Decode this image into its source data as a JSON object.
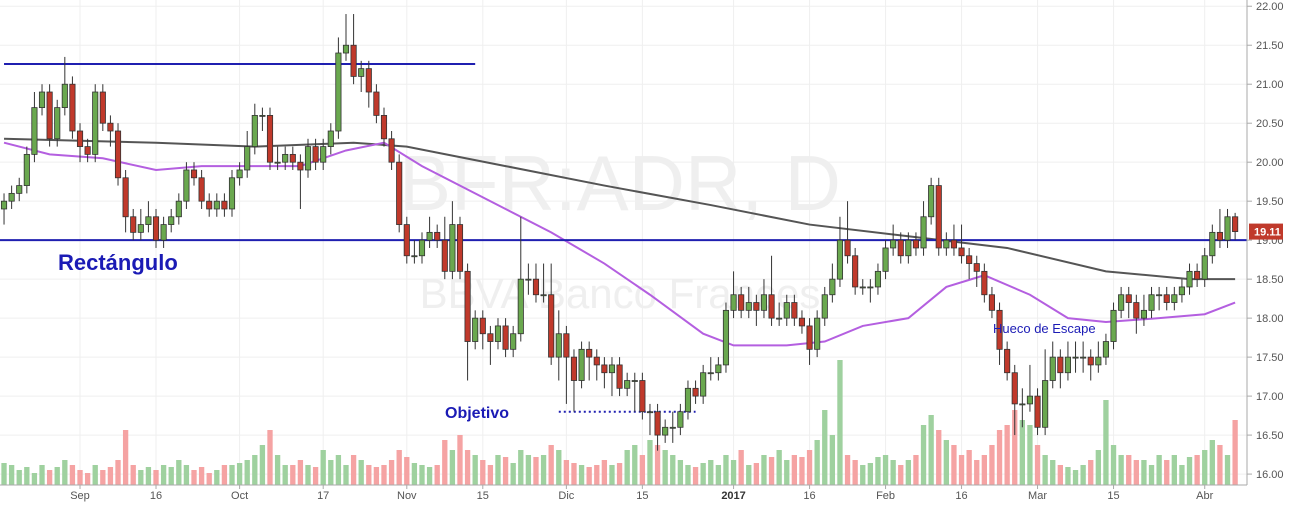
{
  "chart_data": {
    "type": "candlestick",
    "watermark": "BFR:ADR, D",
    "watermark_sub": "BBVA Banco Frances",
    "annotations": [
      "Rectángulo",
      "Objetivo",
      "Hueco de Escape"
    ],
    "xlim": [
      -0.53,
      163.3
    ],
    "ylim": [
      15.86,
      22.08
    ],
    "volume_ylim": [
      0,
      1.3
    ],
    "yticks": [
      {
        "value": 16,
        "label": "16.00"
      },
      {
        "value": 16.5,
        "label": "16.50"
      },
      {
        "value": 17,
        "label": "17.00"
      },
      {
        "value": 17.5,
        "label": "17.50"
      },
      {
        "value": 18,
        "label": "18.00"
      },
      {
        "value": 18.5,
        "label": "18.50"
      },
      {
        "value": 19,
        "label": "19.00"
      },
      {
        "value": 19.5,
        "label": "19.50"
      },
      {
        "value": 20,
        "label": "20.00"
      },
      {
        "value": 20.5,
        "label": "20.50"
      },
      {
        "value": 21,
        "label": "21.00"
      },
      {
        "value": 21.5,
        "label": "21.50"
      },
      {
        "value": 22,
        "label": "22.00"
      }
    ],
    "xticks": [
      {
        "value": 10,
        "label": "Sep"
      },
      {
        "value": 20,
        "label": "16"
      },
      {
        "value": 31,
        "label": "Oct"
      },
      {
        "value": 42,
        "label": "17"
      },
      {
        "value": 53,
        "label": "Nov"
      },
      {
        "value": 63,
        "label": "15"
      },
      {
        "value": 74,
        "label": "Dic"
      },
      {
        "value": 84,
        "label": "15"
      },
      {
        "value": 96,
        "label": "2017"
      },
      {
        "value": 106,
        "label": "16"
      },
      {
        "value": 116,
        "label": "Feb"
      },
      {
        "value": 126,
        "label": "16"
      },
      {
        "value": 136,
        "label": "Mar"
      },
      {
        "value": 146,
        "label": "15"
      },
      {
        "value": 158,
        "label": "Abr"
      }
    ],
    "grid": true,
    "up_color": "#6aa84f",
    "down_color": "#c0392b",
    "volume_up_color": "#9fd19f",
    "volume_down_color": "#f5a3a3",
    "open": [
      19.4,
      19.5,
      19.6,
      19.7,
      20.1,
      20.7,
      20.9,
      20.3,
      20.7,
      21.0,
      20.4,
      20.2,
      20.1,
      20.9,
      20.5,
      20.4,
      19.8,
      19.3,
      19.1,
      19.2,
      19.3,
      19.0,
      19.2,
      19.3,
      19.5,
      19.9,
      19.8,
      19.5,
      19.4,
      19.5,
      19.4,
      19.8,
      19.9,
      20.2,
      20.6,
      20.6,
      20.0,
      20.0,
      20.1,
      20.0,
      19.9,
      20.2,
      20.0,
      20.2,
      20.4,
      21.4,
      21.5,
      21.1,
      21.2,
      20.9,
      20.6,
      20.3,
      20.0,
      19.2,
      18.8,
      18.8,
      19.0,
      19.1,
      19.0,
      18.6,
      19.2,
      18.6,
      17.7,
      18.0,
      17.8,
      17.7,
      17.9,
      17.6,
      17.8,
      18.5,
      18.5,
      18.3,
      18.3,
      17.5,
      17.8,
      17.5,
      17.2,
      17.6,
      17.5,
      17.4,
      17.3,
      17.4,
      17.1,
      17.2,
      17.2,
      16.8,
      16.8,
      16.5,
      16.6,
      16.6,
      16.8,
      17.1,
      17.0,
      17.3,
      17.3,
      17.4,
      18.1,
      18.3,
      18.1,
      18.2,
      18.1,
      18.3,
      18.0,
      18.0,
      18.2,
      18.0,
      17.9,
      17.6,
      18.0,
      18.3,
      18.5,
      19.0,
      18.8,
      18.4,
      18.4,
      18.4,
      18.6,
      18.9,
      19.0,
      18.8,
      19.0,
      18.9,
      19.3,
      19.7,
      18.9,
      19.0,
      18.9,
      18.8,
      18.7,
      18.6,
      18.3,
      18.1,
      17.6,
      17.3,
      16.9,
      16.9,
      17.0,
      16.6,
      17.2,
      17.5,
      17.3,
      17.5,
      17.5,
      17.5,
      17.4,
      17.5,
      17.7,
      18.1,
      18.3,
      18.2,
      18.0,
      18.1,
      18.3,
      18.3,
      18.2,
      18.3,
      18.4,
      18.6,
      18.5,
      18.8,
      19.1,
      19.0,
      19.3
    ],
    "high": [
      19.6,
      19.7,
      19.8,
      20.2,
      20.9,
      21.0,
      21.0,
      20.8,
      21.35,
      21.1,
      20.5,
      20.3,
      21.0,
      21.0,
      20.6,
      20.5,
      19.9,
      19.4,
      19.4,
      19.5,
      19.4,
      19.3,
      19.4,
      19.6,
      20.0,
      20.0,
      19.9,
      19.6,
      19.6,
      19.6,
      19.9,
      20.0,
      20.4,
      20.75,
      20.7,
      20.7,
      20.2,
      20.2,
      20.2,
      20.1,
      20.3,
      20.3,
      20.3,
      20.5,
      21.6,
      21.9,
      21.9,
      21.3,
      21.3,
      21.0,
      20.7,
      20.4,
      20.1,
      19.3,
      19.0,
      19.1,
      19.3,
      19.2,
      19.3,
      19.5,
      19.3,
      18.7,
      18.1,
      18.1,
      17.9,
      18.0,
      18.0,
      17.9,
      19.3,
      18.7,
      18.7,
      18.7,
      18.7,
      18.1,
      17.9,
      17.6,
      17.7,
      17.7,
      17.6,
      17.5,
      17.5,
      17.5,
      17.3,
      17.3,
      17.3,
      16.9,
      16.9,
      16.7,
      16.8,
      16.9,
      17.2,
      17.2,
      17.4,
      17.5,
      17.5,
      18.2,
      18.6,
      18.4,
      18.4,
      18.3,
      18.5,
      18.8,
      18.2,
      18.3,
      18.3,
      18.1,
      18.0,
      18.1,
      18.4,
      18.7,
      19.3,
      19.5,
      18.9,
      18.5,
      18.5,
      18.7,
      19.0,
      19.2,
      19.1,
      19.1,
      19.1,
      19.5,
      19.8,
      19.8,
      19.1,
      19.2,
      19.2,
      18.9,
      18.8,
      18.7,
      18.4,
      18.2,
      17.7,
      17.4,
      17.1,
      17.4,
      17.1,
      17.6,
      17.7,
      17.6,
      17.7,
      17.7,
      17.7,
      17.6,
      17.7,
      17.8,
      18.2,
      18.4,
      18.4,
      18.3,
      18.3,
      18.4,
      18.4,
      18.4,
      18.4,
      18.5,
      18.7,
      18.7,
      18.9,
      19.2,
      19.4,
      19.4,
      19.35
    ],
    "low": [
      19.2,
      19.4,
      19.5,
      19.6,
      20.0,
      20.6,
      20.2,
      20.2,
      20.6,
      20.3,
      20.0,
      20.0,
      20.0,
      20.4,
      20.2,
      19.7,
      19.1,
      19.0,
      19.0,
      19.1,
      18.9,
      18.9,
      19.1,
      19.2,
      19.4,
      19.7,
      19.4,
      19.3,
      19.3,
      19.3,
      19.3,
      19.7,
      19.8,
      20.1,
      20.4,
      19.9,
      19.9,
      19.9,
      19.9,
      19.4,
      19.8,
      19.9,
      19.9,
      20.1,
      20.3,
      21.3,
      21.0,
      20.9,
      20.7,
      20.5,
      20.2,
      19.9,
      19.1,
      18.7,
      18.7,
      18.7,
      18.9,
      18.9,
      18.5,
      18.5,
      18.5,
      17.2,
      17.6,
      17.6,
      17.4,
      17.6,
      17.5,
      17.5,
      17.7,
      18.3,
      18.2,
      18.2,
      17.4,
      17.2,
      16.9,
      16.8,
      17.1,
      17.2,
      17.2,
      17.1,
      17.0,
      17.0,
      17.0,
      16.8,
      16.7,
      16.5,
      16.3,
      16.4,
      16.4,
      16.5,
      16.7,
      16.9,
      16.9,
      17.2,
      17.2,
      17.3,
      18.0,
      18.0,
      18.0,
      17.9,
      18.0,
      17.9,
      17.9,
      17.9,
      17.9,
      17.8,
      17.4,
      17.5,
      17.9,
      18.2,
      18.4,
      18.7,
      18.3,
      18.3,
      18.2,
      18.3,
      18.5,
      18.8,
      18.7,
      18.7,
      18.8,
      18.8,
      19.2,
      18.8,
      18.8,
      18.8,
      18.7,
      18.5,
      18.4,
      18.2,
      18.0,
      17.4,
      17.2,
      16.5,
      16.6,
      16.8,
      16.5,
      16.5,
      17.1,
      17.1,
      17.2,
      17.3,
      17.3,
      17.2,
      17.3,
      17.4,
      17.6,
      18.0,
      18.0,
      17.8,
      17.9,
      18.0,
      18.1,
      18.1,
      18.1,
      18.2,
      18.3,
      18.4,
      18.4,
      18.7,
      18.9,
      18.9,
      19.0
    ],
    "close": [
      19.5,
      19.6,
      19.7,
      20.1,
      20.7,
      20.9,
      20.3,
      20.7,
      21.0,
      20.4,
      20.2,
      20.1,
      20.9,
      20.5,
      20.4,
      19.8,
      19.3,
      19.1,
      19.2,
      19.3,
      19.0,
      19.2,
      19.3,
      19.5,
      19.9,
      19.8,
      19.5,
      19.4,
      19.5,
      19.4,
      19.8,
      19.9,
      20.2,
      20.6,
      20.6,
      20.0,
      20.0,
      20.1,
      20.0,
      19.9,
      20.2,
      20.0,
      20.2,
      20.4,
      21.4,
      21.5,
      21.1,
      21.2,
      20.9,
      20.6,
      20.3,
      20.0,
      19.2,
      18.8,
      18.8,
      19.0,
      19.1,
      19.0,
      18.6,
      19.2,
      18.6,
      17.7,
      18.0,
      17.8,
      17.7,
      17.9,
      17.6,
      17.8,
      18.5,
      18.5,
      18.3,
      18.3,
      17.5,
      17.8,
      17.5,
      17.2,
      17.6,
      17.5,
      17.4,
      17.3,
      17.4,
      17.1,
      17.2,
      17.2,
      16.8,
      16.8,
      16.5,
      16.6,
      16.6,
      16.8,
      17.1,
      17.0,
      17.3,
      17.3,
      17.4,
      18.1,
      18.3,
      18.1,
      18.2,
      18.1,
      18.3,
      18.0,
      18.0,
      18.2,
      18.0,
      17.9,
      17.6,
      18.0,
      18.3,
      18.5,
      19.0,
      18.8,
      18.4,
      18.4,
      18.4,
      18.6,
      18.9,
      19.0,
      18.8,
      19.0,
      18.9,
      19.3,
      19.7,
      18.9,
      19.0,
      18.9,
      18.8,
      18.7,
      18.6,
      18.3,
      18.1,
      17.6,
      17.3,
      16.9,
      16.9,
      17.0,
      16.6,
      17.2,
      17.5,
      17.3,
      17.5,
      17.5,
      17.5,
      17.4,
      17.5,
      17.7,
      18.1,
      18.3,
      18.2,
      18.0,
      18.1,
      18.3,
      18.3,
      18.2,
      18.3,
      18.4,
      18.6,
      18.5,
      18.8,
      19.1,
      19.0,
      19.3,
      19.11
    ],
    "volume": [
      0.22,
      0.2,
      0.15,
      0.18,
      0.12,
      0.2,
      0.15,
      0.18,
      0.25,
      0.2,
      0.15,
      0.12,
      0.2,
      0.15,
      0.18,
      0.25,
      0.55,
      0.2,
      0.15,
      0.18,
      0.15,
      0.2,
      0.18,
      0.25,
      0.2,
      0.15,
      0.18,
      0.12,
      0.15,
      0.2,
      0.2,
      0.22,
      0.25,
      0.3,
      0.4,
      0.55,
      0.3,
      0.2,
      0.2,
      0.25,
      0.2,
      0.18,
      0.35,
      0.25,
      0.3,
      0.2,
      0.3,
      0.25,
      0.2,
      0.18,
      0.2,
      0.25,
      0.35,
      0.28,
      0.22,
      0.2,
      0.18,
      0.2,
      0.45,
      0.35,
      0.5,
      0.35,
      0.3,
      0.25,
      0.2,
      0.3,
      0.28,
      0.22,
      0.35,
      0.3,
      0.28,
      0.3,
      0.4,
      0.35,
      0.25,
      0.22,
      0.2,
      0.18,
      0.2,
      0.25,
      0.2,
      0.22,
      0.35,
      0.4,
      0.3,
      0.45,
      0.4,
      0.35,
      0.3,
      0.25,
      0.2,
      0.18,
      0.22,
      0.25,
      0.2,
      0.3,
      0.25,
      0.35,
      0.2,
      0.22,
      0.3,
      0.28,
      0.35,
      0.25,
      0.3,
      0.28,
      0.35,
      0.45,
      0.75,
      0.5,
      1.25,
      0.3,
      0.25,
      0.2,
      0.22,
      0.28,
      0.3,
      0.25,
      0.2,
      0.25,
      0.3,
      0.6,
      0.7,
      0.55,
      0.45,
      0.4,
      0.3,
      0.35,
      0.25,
      0.3,
      0.4,
      0.55,
      0.6,
      0.75,
      0.65,
      0.6,
      0.4,
      0.3,
      0.25,
      0.2,
      0.18,
      0.15,
      0.2,
      0.25,
      0.35,
      0.85,
      0.4,
      0.3,
      0.3,
      0.25,
      0.25,
      0.2,
      0.3,
      0.25,
      0.3,
      0.2,
      0.28,
      0.3,
      0.35,
      0.45,
      0.4,
      0.3,
      0.65
    ],
    "ma": [
      {
        "color": "#555555",
        "x": [
          0,
          20,
          33,
          46,
          53,
          66,
          79,
          93,
          106,
          119,
          132,
          145,
          156,
          162
        ],
        "values": [
          20.3,
          20.25,
          20.2,
          20.25,
          20.2,
          19.95,
          19.7,
          19.45,
          19.2,
          19.05,
          18.9,
          18.6,
          18.5,
          18.5
        ]
      },
      {
        "color": "#b45fe0",
        "x": [
          0,
          6,
          13,
          20,
          26,
          33,
          39,
          45,
          50,
          55,
          66,
          72,
          79,
          85,
          92,
          96,
          103,
          108,
          113,
          119,
          124,
          129,
          135,
          140,
          145,
          152,
          158,
          162
        ],
        "values": [
          20.25,
          20.1,
          20.05,
          19.9,
          19.95,
          19.95,
          19.95,
          20.15,
          20.25,
          19.95,
          19.4,
          19.1,
          18.7,
          18.3,
          17.8,
          17.65,
          17.65,
          17.7,
          17.9,
          18.0,
          18.4,
          18.55,
          18.3,
          18.0,
          17.95,
          18.0,
          18.05,
          18.2
        ]
      }
    ],
    "lines": [
      {
        "value": 21.26,
        "x": [
          0,
          62
        ],
        "color": "#1f1fb0"
      },
      {
        "value": 19.0,
        "color": "#1f1fb0"
      },
      {
        "value": 16.8,
        "x": [
          73,
          91
        ],
        "color": "#1f1fb0",
        "style": "dotted"
      }
    ]
  }
}
